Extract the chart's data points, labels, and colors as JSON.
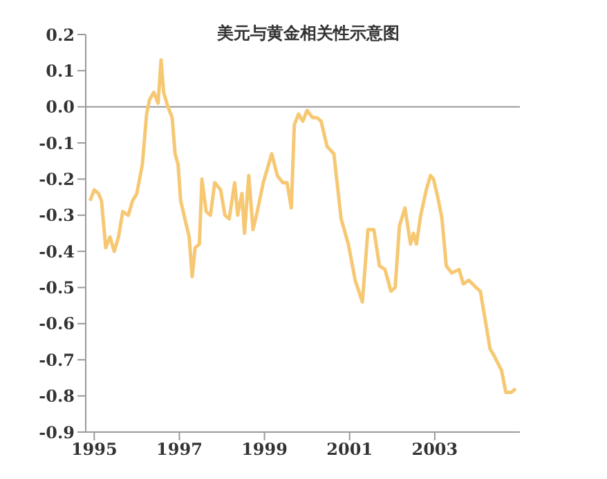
{
  "chart_data": {
    "type": "line",
    "title": "美元与黄金相关性示意图",
    "x": [
      1994.9,
      1995.0,
      1995.1,
      1995.17,
      1995.27,
      1995.37,
      1995.47,
      1995.57,
      1995.67,
      1995.8,
      1995.9,
      1996.0,
      1996.13,
      1996.23,
      1996.3,
      1996.4,
      1996.5,
      1996.57,
      1996.63,
      1996.73,
      1996.83,
      1996.9,
      1996.97,
      1997.03,
      1997.13,
      1997.23,
      1997.3,
      1997.37,
      1997.47,
      1997.53,
      1997.63,
      1997.73,
      1997.83,
      1997.97,
      1998.07,
      1998.17,
      1998.3,
      1998.37,
      1998.47,
      1998.53,
      1998.63,
      1998.73,
      1998.83,
      1998.97,
      1999.07,
      1999.17,
      1999.3,
      1999.43,
      1999.53,
      1999.63,
      1999.7,
      1999.8,
      1999.9,
      2000.0,
      2000.13,
      2000.23,
      2000.33,
      2000.47,
      2000.63,
      2000.8,
      2000.97,
      2001.13,
      2001.3,
      2001.43,
      2001.57,
      2001.7,
      2001.83,
      2001.97,
      2002.07,
      2002.17,
      2002.3,
      2002.43,
      2002.5,
      2002.57,
      2002.67,
      2002.8,
      2002.9,
      2002.97,
      2003.07,
      2003.17,
      2003.27,
      2003.4,
      2003.57,
      2003.67,
      2003.8,
      2003.97,
      2004.07,
      2004.2,
      2004.3,
      2004.4,
      2004.57,
      2004.67,
      2004.8,
      2004.9
    ],
    "series": [
      {
        "color": "#f7c873",
        "values": [
          -0.26,
          -0.23,
          -0.24,
          -0.26,
          -0.39,
          -0.36,
          -0.4,
          -0.36,
          -0.29,
          -0.3,
          -0.26,
          -0.24,
          -0.16,
          -0.02,
          0.02,
          0.04,
          0.01,
          0.13,
          0.04,
          0.0,
          -0.03,
          -0.13,
          -0.16,
          -0.26,
          -0.31,
          -0.36,
          -0.47,
          -0.39,
          -0.38,
          -0.2,
          -0.29,
          -0.3,
          -0.21,
          -0.23,
          -0.3,
          -0.31,
          -0.21,
          -0.3,
          -0.24,
          -0.35,
          -0.19,
          -0.34,
          -0.29,
          -0.21,
          -0.17,
          -0.13,
          -0.19,
          -0.21,
          -0.21,
          -0.28,
          -0.05,
          -0.02,
          -0.04,
          -0.01,
          -0.03,
          -0.03,
          -0.04,
          -0.11,
          -0.13,
          -0.31,
          -0.38,
          -0.48,
          -0.54,
          -0.34,
          -0.34,
          -0.44,
          -0.45,
          -0.51,
          -0.5,
          -0.33,
          -0.28,
          -0.38,
          -0.35,
          -0.38,
          -0.3,
          -0.23,
          -0.19,
          -0.2,
          -0.25,
          -0.31,
          -0.44,
          -0.46,
          -0.45,
          -0.49,
          -0.48,
          -0.5,
          -0.51,
          -0.6,
          -0.67,
          -0.69,
          -0.73,
          -0.79,
          -0.79,
          -0.78
        ]
      }
    ],
    "xlim": [
      1994.8,
      2005.0
    ],
    "xticks": [
      1995,
      1997,
      1999,
      2001,
      2003
    ],
    "ylim": [
      -0.9,
      0.2
    ],
    "yticks": [
      {
        "value": 0.2,
        "label": "0.2"
      },
      {
        "value": 0.1,
        "label": "0.1"
      },
      {
        "value": 0,
        "label": "0.0"
      },
      {
        "value": -0.1,
        "label": "-0.1"
      },
      {
        "value": -0.2,
        "label": "-0.2"
      },
      {
        "value": -0.3,
        "label": "-0.3"
      },
      {
        "value": -0.4,
        "label": "-0.4"
      },
      {
        "value": -0.5,
        "label": "-0.5"
      },
      {
        "value": -0.6,
        "label": "-0.6"
      },
      {
        "value": -0.7,
        "label": "-0.7"
      },
      {
        "value": -0.8,
        "label": "-0.8"
      },
      {
        "value": -0.9,
        "label": "-0.9"
      }
    ],
    "ref_lines": [
      {
        "axis": "y",
        "value": 0,
        "color": "#999999"
      }
    ],
    "grid": false,
    "legend": false,
    "marker": "none",
    "line_style": "solid"
  }
}
